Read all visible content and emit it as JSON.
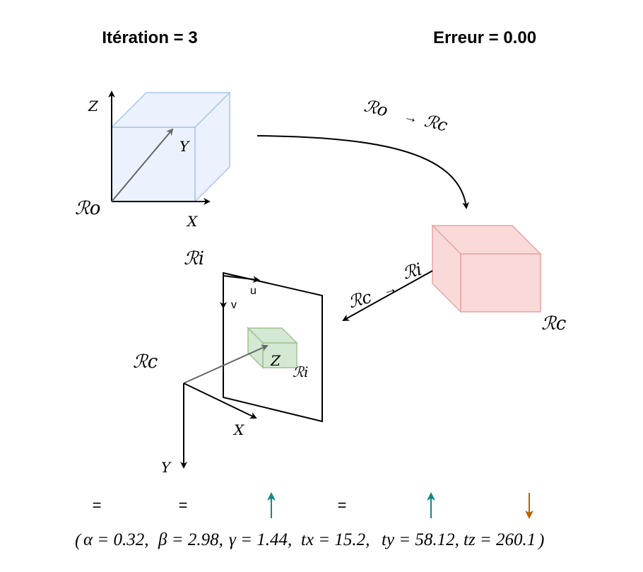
{
  "header": {
    "iteration": "Itération = 3",
    "error": "Erreur = 0.00"
  },
  "object_frame": {
    "name": "ℛo",
    "axis_x": "X",
    "axis_y": "Y",
    "axis_z": "Z",
    "cube_color": "#dae8fc"
  },
  "transform_object_to_camera": {
    "from": "ℛo",
    "to": "ℛc"
  },
  "camera_frame": {
    "name": "ℛc",
    "cube_color": "#f8cecc"
  },
  "transform_camera_to_image": {
    "from": "ℛc",
    "to": "ℛi"
  },
  "image_frame": {
    "name": "ℛi",
    "axis_u": "u",
    "axis_v": "v",
    "projected_cube_color": "#d5e8d4",
    "projected_label_z": "Z",
    "projected_label_frame": "ℛi"
  },
  "camera_axes": {
    "name": "ℛc",
    "axis_x": "X",
    "axis_y": "Y"
  },
  "parameter_trends": [
    {
      "param": "alpha",
      "symbol": "=",
      "trend": "equal",
      "color": "#97d077"
    },
    {
      "param": "beta",
      "symbol": "=",
      "trend": "equal",
      "color": "#97d077"
    },
    {
      "param": "gamma",
      "symbol": "↑",
      "trend": "up",
      "color": "#12878a"
    },
    {
      "param": "tx",
      "symbol": "=",
      "trend": "equal",
      "color": "#97d077"
    },
    {
      "param": "ty",
      "symbol": "↑",
      "trend": "up",
      "color": "#12878a"
    },
    {
      "param": "tz",
      "symbol": "↓",
      "trend": "down",
      "color": "#b46504"
    }
  ],
  "parameters": {
    "open": "(",
    "close": ")",
    "alpha": "α = 0.32,",
    "beta": "β = 2.98,",
    "gamma": "γ = 1.44,",
    "tx": "tx = 15.2,",
    "ty": "ty = 58.12,",
    "tz": "tz = 260.1"
  }
}
